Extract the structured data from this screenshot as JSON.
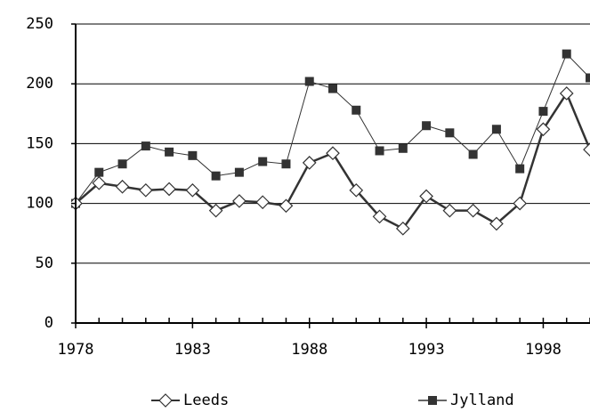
{
  "chart_data": {
    "type": "line",
    "x": [
      1978,
      1979,
      1980,
      1981,
      1982,
      1983,
      1984,
      1985,
      1986,
      1987,
      1988,
      1989,
      1990,
      1991,
      1992,
      1993,
      1994,
      1995,
      1996,
      1997,
      1998,
      1999,
      2000
    ],
    "series": [
      {
        "name": "Leeds",
        "color": "#333333",
        "marker": "diamond",
        "values": [
          100,
          117,
          114,
          111,
          112,
          111,
          94,
          102,
          101,
          98,
          134,
          142,
          111,
          89,
          79,
          106,
          94,
          94,
          83,
          100,
          162,
          192,
          145
        ]
      },
      {
        "name": "Jylland",
        "color": "#333333",
        "marker": "square",
        "values": [
          100,
          126,
          133,
          148,
          143,
          140,
          123,
          126,
          135,
          133,
          202,
          196,
          178,
          144,
          146,
          165,
          159,
          141,
          162,
          129,
          177,
          225,
          205
        ]
      }
    ],
    "xlim": [
      1978,
      2000
    ],
    "xticks": [
      1978,
      1983,
      1988,
      1993,
      1998
    ],
    "ylim": [
      0,
      250
    ],
    "yticks": [
      0,
      50,
      100,
      150,
      200,
      250
    ],
    "grid": true,
    "legend": "bottom"
  }
}
